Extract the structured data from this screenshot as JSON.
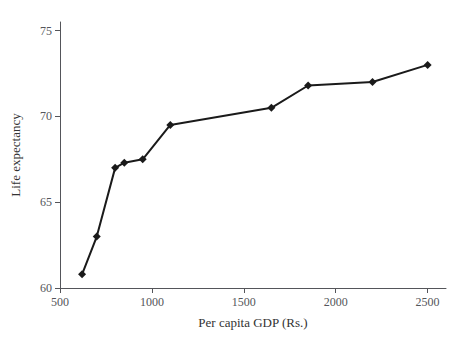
{
  "chart_data": {
    "type": "line",
    "x": [
      620,
      700,
      800,
      850,
      950,
      1100,
      1650,
      1850,
      2200,
      2500
    ],
    "values": [
      60.8,
      63.0,
      67.0,
      67.3,
      67.5,
      69.5,
      70.5,
      71.8,
      72.0,
      73.0
    ],
    "xlabel": "Per capita GDP (Rs.)",
    "ylabel": "Life expectancy",
    "xlim": [
      500,
      2600
    ],
    "ylim": [
      60,
      75.5
    ],
    "xticks": [
      500,
      1000,
      1500,
      2000,
      2500
    ],
    "yticks": [
      60,
      65,
      70,
      75
    ],
    "color": "#1a1a1a",
    "marker": "diamond",
    "grid": false
  }
}
